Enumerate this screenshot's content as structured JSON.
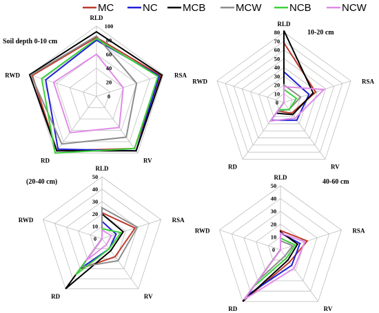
{
  "legend": [
    {
      "name": "MC",
      "color": "#c0392b"
    },
    {
      "name": "NC",
      "color": "#1f1fd6"
    },
    {
      "name": "MCB",
      "color": "#000000"
    },
    {
      "name": "MCW",
      "color": "#8c8c8c"
    },
    {
      "name": "NCB",
      "color": "#3ad13a"
    },
    {
      "name": "NCW",
      "color": "#e08ae8"
    }
  ],
  "chart_data": [
    {
      "type": "radar",
      "title": "Soil depth 0-10 cm",
      "axes": [
        "RLD",
        "RSA",
        "RV",
        "RD",
        "RWD"
      ],
      "ticks": [
        0,
        20,
        40,
        60,
        80,
        100
      ],
      "range": [
        0,
        100
      ],
      "series": [
        {
          "name": "MC",
          "values": [
            84,
            96,
            92,
            96,
            96
          ]
        },
        {
          "name": "NC",
          "values": [
            80,
            94,
            96,
            93,
            76
          ]
        },
        {
          "name": "MCB",
          "values": [
            92,
            98,
            96,
            96,
            100
          ]
        },
        {
          "name": "MCW",
          "values": [
            86,
            60,
            72,
            84,
            98
          ]
        },
        {
          "name": "NCB",
          "values": [
            82,
            92,
            92,
            100,
            82
          ]
        },
        {
          "name": "NCW",
          "values": [
            60,
            40,
            55,
            64,
            64
          ]
        }
      ]
    },
    {
      "type": "radar",
      "title": "10-20 cm",
      "axes": [
        "RLD",
        "RSA",
        "RV",
        "RD",
        "RWD"
      ],
      "ticks": [
        0,
        10,
        20,
        30,
        40,
        50,
        60,
        70,
        80
      ],
      "range": [
        0,
        80
      ],
      "series": [
        {
          "name": "MC",
          "values": [
            68,
            38,
            15,
            12,
            0
          ]
        },
        {
          "name": "NC",
          "values": [
            35,
            30,
            25,
            25,
            0
          ]
        },
        {
          "name": "MCB",
          "values": [
            82,
            35,
            17,
            15,
            0
          ]
        },
        {
          "name": "MCW",
          "values": [
            20,
            20,
            10,
            12,
            0
          ]
        },
        {
          "name": "NCB",
          "values": [
            15,
            15,
            10,
            10,
            0
          ]
        },
        {
          "name": "NCW",
          "values": [
            18,
            48,
            22,
            26,
            0
          ]
        }
      ]
    },
    {
      "type": "radar",
      "title": "(20-40 cm)",
      "axes": [
        "RLD",
        "RSA",
        "RV",
        "RD",
        "RWD"
      ],
      "ticks": [
        0,
        10,
        20,
        30,
        40,
        50
      ],
      "range": [
        0,
        50
      ],
      "series": [
        {
          "name": "MC",
          "values": [
            21,
            28,
            18,
            30,
            0
          ]
        },
        {
          "name": "NC",
          "values": [
            14,
            12,
            10,
            30,
            0
          ]
        },
        {
          "name": "MCB",
          "values": [
            20,
            18,
            12,
            50,
            0
          ]
        },
        {
          "name": "MCW",
          "values": [
            25,
            30,
            22,
            28,
            0
          ]
        },
        {
          "name": "NCB",
          "values": [
            8,
            16,
            10,
            36,
            0
          ]
        },
        {
          "name": "NCW",
          "values": [
            7,
            8,
            6,
            22,
            0
          ]
        }
      ]
    },
    {
      "type": "radar",
      "title": "40-60 cm",
      "axes": [
        "RLD",
        "RSA",
        "RV",
        "RD",
        "RWD"
      ],
      "ticks": [
        0,
        10,
        20,
        30,
        40,
        50
      ],
      "range": [
        0,
        50
      ],
      "series": [
        {
          "name": "MC",
          "values": [
            15,
            22,
            12,
            50,
            0
          ]
        },
        {
          "name": "NC",
          "values": [
            13,
            16,
            15,
            44,
            0
          ]
        },
        {
          "name": "MCB",
          "values": [
            14,
            14,
            10,
            50,
            0
          ]
        },
        {
          "name": "MCW",
          "values": [
            7,
            10,
            6,
            30,
            0
          ]
        },
        {
          "name": "NCB",
          "values": [
            9,
            12,
            8,
            36,
            0
          ]
        },
        {
          "name": "NCW",
          "values": [
            13,
            20,
            18,
            48,
            0
          ]
        }
      ]
    }
  ]
}
